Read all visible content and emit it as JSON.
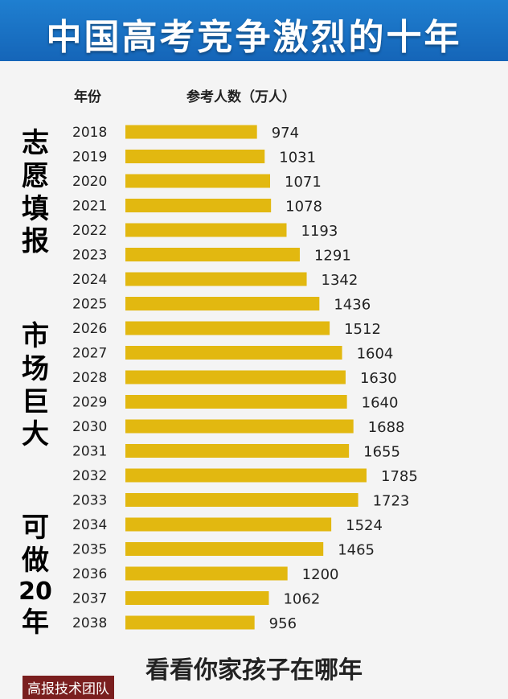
{
  "title": "中国高考竞争激烈的十年",
  "header": {
    "year_label": "年份",
    "count_label": "参考人数（万人）"
  },
  "side_text": {
    "group1": "志愿填报",
    "group2": "市场巨大",
    "group3_prefix": "可做",
    "group3_num": "20",
    "group3_suffix": "年"
  },
  "footer_text": "看看你家孩子在哪年",
  "watermark": "高报技术团队",
  "colors": {
    "bar": "#e2b810",
    "header": "#1a6fc4"
  },
  "chart_data": {
    "type": "bar",
    "orientation": "horizontal",
    "categories": [
      "2018",
      "2019",
      "2020",
      "2021",
      "2022",
      "2023",
      "2024",
      "2025",
      "2026",
      "2027",
      "2028",
      "2029",
      "2030",
      "2031",
      "2032",
      "2033",
      "2034",
      "2035",
      "2036",
      "2037",
      "2038"
    ],
    "values": [
      974,
      1031,
      1071,
      1078,
      1193,
      1291,
      1342,
      1436,
      1512,
      1604,
      1630,
      1640,
      1688,
      1655,
      1785,
      1723,
      1524,
      1465,
      1200,
      1062,
      956
    ],
    "title": "中国高考竞争激烈的十年",
    "xlabel": "参考人数（万人）",
    "ylabel": "年份"
  }
}
